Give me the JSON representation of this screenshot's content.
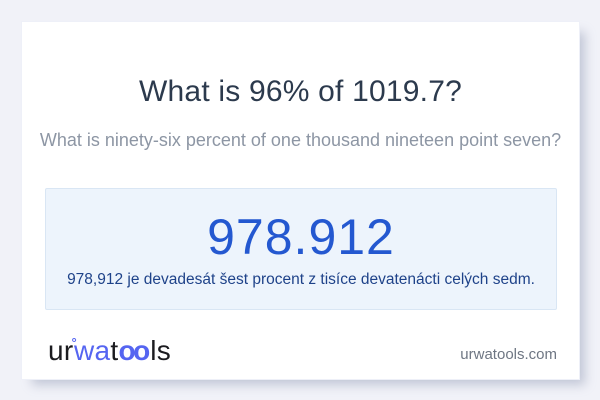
{
  "card": {
    "title": "What is 96% of 1019.7?",
    "subtitle": "What is ninety-six percent of one thousand nineteen point seven?",
    "result": {
      "value": "978.912",
      "description": "978,912 je devadesát šest procent z tisíce devatenácti celých sedm."
    },
    "footer": {
      "logo_ur": "ur",
      "logo_degree": "°",
      "logo_wa": "wa",
      "logo_t": "t",
      "logo_oo": "oo",
      "logo_ls": "ls",
      "site_url": "urwatools.com"
    }
  },
  "colors": {
    "page_background": "#f1f2f8",
    "card_background": "#ffffff",
    "title_text": "#2c3a4d",
    "subtitle_text": "#8d96a4",
    "result_box_background": "#edf4fc",
    "result_box_border": "#d9e6f4",
    "result_value": "#2458d0",
    "result_description": "#1e4289",
    "logo_blue": "#5565f1",
    "logo_black": "#1b1b1f",
    "site_url_text": "#6e7683"
  }
}
